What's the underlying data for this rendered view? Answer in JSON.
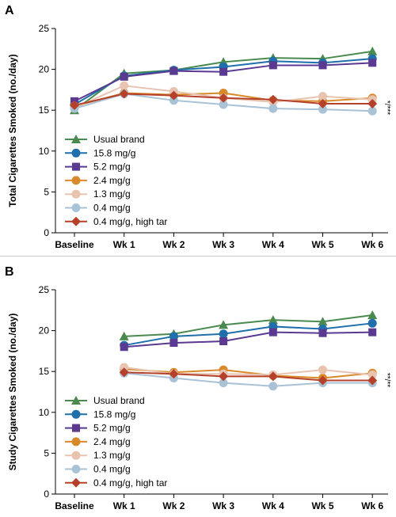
{
  "chart_data": [
    {
      "type": "line",
      "panel_label": "A",
      "ylabel": "Total Cigarettes Smoked (no./day)",
      "xlabel": "",
      "ylim": [
        0,
        25
      ],
      "yticks": [
        0,
        5,
        10,
        15,
        20,
        25
      ],
      "categories": [
        "Baseline",
        "Wk 1",
        "Wk 2",
        "Wk 3",
        "Wk 4",
        "Wk 5",
        "Wk 6"
      ],
      "legend_position": "bottom-left",
      "annotation": "*/***",
      "series": [
        {
          "name": "Usual brand",
          "color": "#4a8a4e",
          "marker": "triangle",
          "values": [
            15.0,
            19.5,
            19.9,
            20.9,
            21.4,
            21.3,
            22.2
          ]
        },
        {
          "name": "15.8 mg/g",
          "color": "#1e6fab",
          "marker": "circle",
          "values": [
            15.7,
            19.2,
            19.9,
            20.3,
            21.0,
            20.8,
            21.3
          ]
        },
        {
          "name": "5.2 mg/g",
          "color": "#5a3a90",
          "marker": "square",
          "values": [
            16.1,
            19.1,
            19.8,
            19.7,
            20.5,
            20.5,
            20.8
          ]
        },
        {
          "name": "2.4 mg/g",
          "color": "#d88a2a",
          "marker": "circle",
          "values": [
            15.5,
            17.1,
            16.9,
            17.1,
            16.2,
            16.1,
            16.5
          ]
        },
        {
          "name": "1.3 mg/g",
          "color": "#e8c4b0",
          "marker": "circle",
          "values": [
            15.3,
            18.0,
            17.3,
            16.5,
            16.0,
            16.7,
            16.3
          ]
        },
        {
          "name": "0.4 mg/g",
          "color": "#a9c2d6",
          "marker": "circle",
          "values": [
            15.2,
            17.0,
            16.2,
            15.7,
            15.2,
            15.1,
            14.9
          ]
        },
        {
          "name": "0.4 mg/g, high tar",
          "color": "#b5412b",
          "marker": "diamond",
          "values": [
            15.6,
            17.0,
            16.8,
            16.5,
            16.3,
            15.8,
            15.8
          ]
        }
      ]
    },
    {
      "type": "line",
      "panel_label": "B",
      "ylabel": "Study Cigarettes Smoked (no./day)",
      "xlabel": "",
      "ylim": [
        0,
        25
      ],
      "yticks": [
        0,
        5,
        10,
        15,
        20,
        25
      ],
      "categories": [
        "Baseline",
        "Wk 1",
        "Wk 2",
        "Wk 3",
        "Wk 4",
        "Wk 5",
        "Wk 6"
      ],
      "legend_position": "bottom-left",
      "annotation": "**/**",
      "series": [
        {
          "name": "Usual brand",
          "color": "#4a8a4e",
          "marker": "triangle",
          "values": [
            null,
            19.3,
            19.6,
            20.7,
            21.3,
            21.1,
            21.9
          ]
        },
        {
          "name": "15.8 mg/g",
          "color": "#1e6fab",
          "marker": "circle",
          "values": [
            null,
            18.2,
            19.3,
            19.6,
            20.5,
            20.2,
            20.9
          ]
        },
        {
          "name": "5.2 mg/g",
          "color": "#5a3a90",
          "marker": "square",
          "values": [
            null,
            18.0,
            18.5,
            18.7,
            19.8,
            19.7,
            19.8
          ]
        },
        {
          "name": "2.4 mg/g",
          "color": "#d88a2a",
          "marker": "circle",
          "values": [
            null,
            15.3,
            14.9,
            15.2,
            14.5,
            14.2,
            14.8
          ]
        },
        {
          "name": "1.3 mg/g",
          "color": "#e8c4b0",
          "marker": "circle",
          "values": [
            null,
            15.5,
            14.7,
            14.7,
            14.6,
            15.2,
            14.6
          ]
        },
        {
          "name": "0.4 mg/g",
          "color": "#a9c2d6",
          "marker": "circle",
          "values": [
            null,
            14.8,
            14.2,
            13.6,
            13.2,
            13.6,
            13.6
          ]
        },
        {
          "name": "0.4 mg/g, high tar",
          "color": "#b5412b",
          "marker": "diamond",
          "values": [
            null,
            14.9,
            14.7,
            14.4,
            14.4,
            13.9,
            13.9
          ]
        }
      ]
    }
  ]
}
